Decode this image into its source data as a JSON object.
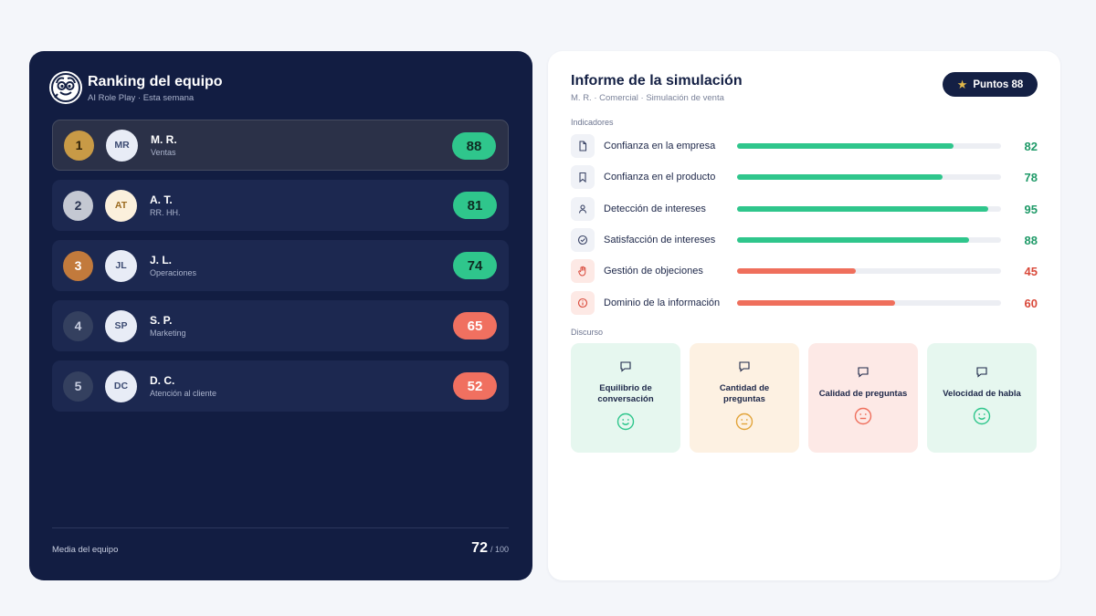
{
  "ranking": {
    "title": "Ranking del equipo",
    "subtitle": "AI Role Play · Esta semana",
    "rows": [
      {
        "position": "1",
        "initials": "MR",
        "name": "M. R.",
        "dept": "Ventas",
        "score": "88"
      },
      {
        "position": "2",
        "initials": "AT",
        "name": "A. T.",
        "dept": "RR. HH.",
        "score": "81"
      },
      {
        "position": "3",
        "initials": "JL",
        "name": "J. L.",
        "dept": "Operaciones",
        "score": "74"
      },
      {
        "position": "4",
        "initials": "SP",
        "name": "S. P.",
        "dept": "Marketing",
        "score": "65"
      },
      {
        "position": "5",
        "initials": "DC",
        "name": "D. C.",
        "dept": "Atención al cliente",
        "score": "52"
      }
    ],
    "footer_label": "Media del equipo",
    "footer_score": "72",
    "footer_total": "/ 100"
  },
  "report": {
    "title": "Informe de la simulación",
    "subtitle": "M. R. · Comercial · Simulación de venta",
    "points_label": "Puntos 88",
    "indicators_label": "Indicadores",
    "indicators": [
      {
        "icon": "document-icon",
        "label": "Confianza en la empresa",
        "value": "82",
        "fraction": 0.82,
        "status": "good"
      },
      {
        "icon": "bookmark-icon",
        "label": "Confianza en el producto",
        "value": "78",
        "fraction": 0.78,
        "status": "good"
      },
      {
        "icon": "person-icon",
        "label": "Detección de intereses",
        "value": "95",
        "fraction": 0.95,
        "status": "good"
      },
      {
        "icon": "check-circle-icon",
        "label": "Satisfacción de intereses",
        "value": "88",
        "fraction": 0.88,
        "status": "good"
      },
      {
        "icon": "hand-icon",
        "label": "Gestión de objeciones",
        "value": "45",
        "fraction": 0.45,
        "status": "bad"
      },
      {
        "icon": "info-icon",
        "label": "Dominio de la información",
        "value": "60",
        "fraction": 0.6,
        "status": "bad"
      }
    ],
    "discourse_label": "Discurso",
    "discourse": [
      {
        "title": "Equilibrio de conversación",
        "face": "happy"
      },
      {
        "title": "Cantidad de preguntas",
        "face": "neutral"
      },
      {
        "title": "Calidad de preguntas",
        "face": "neutral"
      },
      {
        "title": "Velocidad de habla",
        "face": "happy"
      }
    ]
  },
  "colors": {
    "good": "#2fc68c",
    "bad": "#ef6f5c",
    "good_text": "#1f9a68",
    "bad_text": "#d9493a",
    "gold": "#c89a46",
    "silver": "#c4c8d2",
    "bronze": "#c27a3c"
  }
}
